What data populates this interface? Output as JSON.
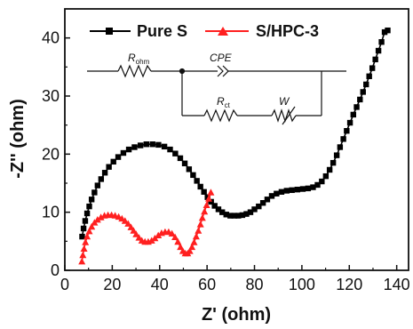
{
  "chart_data": {
    "type": "scatter",
    "xlabel": "Z' (ohm)",
    "ylabel": "-Z'' (ohm)",
    "xlim": [
      0,
      145
    ],
    "ylim": [
      0,
      45
    ],
    "xticks": [
      "0",
      "20",
      "40",
      "60",
      "80",
      "100",
      "120",
      "140"
    ],
    "yticks": [
      "0",
      "10",
      "20",
      "30",
      "40"
    ],
    "legend_position": "top-left",
    "series": [
      {
        "name": "Pure S",
        "color": "#000000",
        "marker": "square",
        "points": [
          [
            7.3,
            5.8
          ],
          [
            7.9,
            7.2
          ],
          [
            8.6,
            8.5
          ],
          [
            9.4,
            9.8
          ],
          [
            10.3,
            11.0
          ],
          [
            11.3,
            12.2
          ],
          [
            12.5,
            13.4
          ],
          [
            13.8,
            14.6
          ],
          [
            15.3,
            15.7
          ],
          [
            16.9,
            16.8
          ],
          [
            18.6,
            17.8
          ],
          [
            20.5,
            18.7
          ],
          [
            22.5,
            19.5
          ],
          [
            24.7,
            20.2
          ],
          [
            27.0,
            20.8
          ],
          [
            29.4,
            21.2
          ],
          [
            31.9,
            21.5
          ],
          [
            34.4,
            21.7
          ],
          [
            37.0,
            21.7
          ],
          [
            39.5,
            21.6
          ],
          [
            42.0,
            21.3
          ],
          [
            44.4,
            20.8
          ],
          [
            46.6,
            20.1
          ],
          [
            48.7,
            19.3
          ],
          [
            50.6,
            18.4
          ],
          [
            52.4,
            17.4
          ],
          [
            54.1,
            16.4
          ],
          [
            55.7,
            15.4
          ],
          [
            57.2,
            14.4
          ],
          [
            58.7,
            13.5
          ],
          [
            60.2,
            12.6
          ],
          [
            61.7,
            11.8
          ],
          [
            63.2,
            11.1
          ],
          [
            64.8,
            10.5
          ],
          [
            66.4,
            10.0
          ],
          [
            68.1,
            9.6
          ],
          [
            69.8,
            9.4
          ],
          [
            71.5,
            9.4
          ],
          [
            73.2,
            9.4
          ],
          [
            74.9,
            9.5
          ],
          [
            76.6,
            9.7
          ],
          [
            78.3,
            10.0
          ],
          [
            80.0,
            10.5
          ],
          [
            81.8,
            11.0
          ],
          [
            83.6,
            11.6
          ],
          [
            85.4,
            12.2
          ],
          [
            87.3,
            12.8
          ],
          [
            89.3,
            13.2
          ],
          [
            91.4,
            13.5
          ],
          [
            93.6,
            13.7
          ],
          [
            95.8,
            13.8
          ],
          [
            98.1,
            13.9
          ],
          [
            100.4,
            14.0
          ],
          [
            102.6,
            14.1
          ],
          [
            104.7,
            14.3
          ],
          [
            106.6,
            14.7
          ],
          [
            108.4,
            15.3
          ],
          [
            110.1,
            16.2
          ],
          [
            111.7,
            17.3
          ],
          [
            113.2,
            18.5
          ],
          [
            114.7,
            19.8
          ],
          [
            116.1,
            21.2
          ],
          [
            117.5,
            22.6
          ],
          [
            118.9,
            24.0
          ],
          [
            120.3,
            25.4
          ],
          [
            121.7,
            26.8
          ],
          [
            123.1,
            28.1
          ],
          [
            124.5,
            29.4
          ],
          [
            125.8,
            30.7
          ],
          [
            127.1,
            32.0
          ],
          [
            128.4,
            33.4
          ],
          [
            129.7,
            34.8
          ],
          [
            131.0,
            36.3
          ],
          [
            132.3,
            37.8
          ],
          [
            133.6,
            39.3
          ],
          [
            134.9,
            41.0
          ],
          [
            136.2,
            41.3
          ]
        ]
      },
      {
        "name": "S/HPC-3",
        "color": "#ff2020",
        "marker": "triangle",
        "points": [
          [
            7.2,
            1.5
          ],
          [
            7.6,
            2.6
          ],
          [
            8.1,
            3.7
          ],
          [
            8.7,
            4.8
          ],
          [
            9.4,
            5.8
          ],
          [
            10.3,
            6.7
          ],
          [
            11.3,
            7.5
          ],
          [
            12.5,
            8.2
          ],
          [
            13.8,
            8.7
          ],
          [
            15.2,
            9.1
          ],
          [
            16.7,
            9.4
          ],
          [
            18.2,
            9.5
          ],
          [
            19.7,
            9.5
          ],
          [
            21.2,
            9.4
          ],
          [
            22.7,
            9.2
          ],
          [
            24.1,
            8.9
          ],
          [
            25.4,
            8.5
          ],
          [
            26.7,
            8.0
          ],
          [
            27.9,
            7.4
          ],
          [
            29.0,
            6.8
          ],
          [
            30.1,
            6.2
          ],
          [
            31.3,
            5.6
          ],
          [
            32.5,
            5.1
          ],
          [
            33.8,
            4.9
          ],
          [
            35.2,
            4.9
          ],
          [
            36.6,
            5.1
          ],
          [
            38.0,
            5.5
          ],
          [
            39.4,
            6.0
          ],
          [
            40.8,
            6.4
          ],
          [
            42.3,
            6.6
          ],
          [
            43.8,
            6.6
          ],
          [
            45.2,
            6.3
          ],
          [
            46.5,
            5.7
          ],
          [
            47.7,
            4.9
          ],
          [
            48.8,
            4.0
          ],
          [
            49.8,
            3.3
          ],
          [
            50.8,
            2.9
          ],
          [
            51.8,
            2.9
          ],
          [
            52.7,
            3.3
          ],
          [
            53.6,
            4.0
          ],
          [
            54.5,
            4.8
          ],
          [
            55.4,
            5.8
          ],
          [
            56.3,
            6.8
          ],
          [
            57.2,
            7.9
          ],
          [
            58.0,
            9.0
          ],
          [
            58.9,
            10.1
          ],
          [
            59.8,
            11.2
          ],
          [
            60.7,
            12.3
          ],
          [
            61.6,
            13.4
          ]
        ]
      }
    ]
  },
  "circuit": {
    "r_ohm": "R",
    "r_ohm_sub": "ohm",
    "cpe": "CPE",
    "r_ct": "R",
    "r_ct_sub": "ct",
    "w": "W"
  }
}
